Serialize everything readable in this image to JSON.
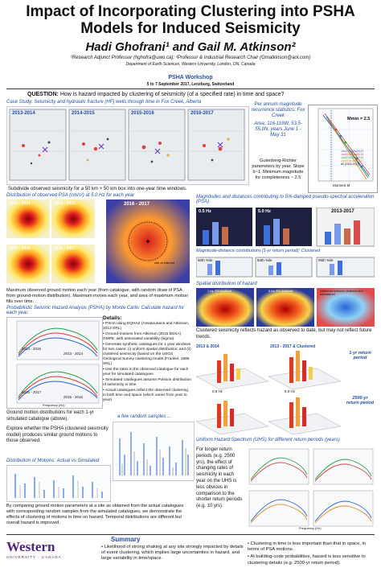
{
  "header": {
    "title_line1": "Impact of Incorporating Clustering into PSHA",
    "title_line2": "Models for Induced Seismicity",
    "authors": "Hadi Ghofrani¹ and Gail M. Atkinson²",
    "affiliations": "¹Research Adjunct Professor (hghofra@uwo.ca); ²Professor & Industrial Research Chair (Gmatkinson@aol.com)",
    "department": "Department of Earth Sciences, Western University, London, ON, Canada",
    "workshop": "PSHA Workshop",
    "workshop_dates": "5 to 7 September 2017, Lenzburg, Switzerland"
  },
  "question": {
    "label": "QUESTION:",
    "text": "How is hazard impacted by clustering of seismicity (of a specified rate) in time and space?"
  },
  "case_study": {
    "title": "Case Study: Seismicity and hydraulic fracture (HF) wells through time in Fox Creek, Alberta",
    "years": [
      "2013-2014",
      "2014-2015",
      "2015-2016",
      "2016-2017"
    ]
  },
  "recurrence": {
    "title": "Per annum magnitude recurrence statistics: Fox Creek",
    "area": "Area: 116-119W, 53.5-55.0N, years June 1 - May 31",
    "gr_text": "Gutenberg-Richter parameters by year. Slope b~1. Minimum magnitude for completeness ~ 2.5",
    "mmin_label": "Mmin = 2.5",
    "xlabel": "Moment M",
    "legend": [
      "Jun2013-May2014",
      "Jun2014-May2015",
      "Jun2015-May2016",
      "Jun2016-May2017",
      "All (2013-2017)"
    ]
  },
  "subdivide": {
    "text": "Subdivide observed seismicity for a 50 km × 50 km box into one-year time windows."
  },
  "psa_maps": {
    "title": "Distribution of observed PSA (cm/s²) at 5.0 Hz for each year",
    "labels": [
      "2013 - 2014",
      "2014 - 2015",
      "2015 - 2016",
      "2016 - 2017"
    ],
    "zoom_label": "2016 - 2017",
    "site_label": "site of interest"
  },
  "max_motion_text": "Maximum observed ground motion each year (from catalogue, with random draw of PSA from ground-motion distribution). Maximum moves each year, and area of maximum motion fills over time.",
  "magnitudes": {
    "title": "Magnitudes and distances contributing to 5%-damped pseudo-spectral acceleration (PSA)",
    "freq1": "0.5 Hz",
    "freq2": "5.0 Hz",
    "year": "2013-2017",
    "contrib_title": "Magnitude-distance contributions [1-yr return period]: Clustered",
    "percentiles": [
      "50th %ile",
      "84th %ile",
      "95th %ile"
    ]
  },
  "psha": {
    "title": "Probabilistic Seismic Hazard Analysis (PSHA) by Monte Carlo: Calculate hazard for each year.",
    "details_label": "Details:",
    "details": [
      "PSHA using EQHAZ (Assatourians and Atkinson, 2013 SRL)",
      "Ground-motions from Atkinson (2015 BSSA) GMPE, with associated variability (sigma)",
      "Generate synthetic catalogues for 1 year windows for two cases: (i) uniform spatial distribution; and (ii) clustered seismicity (based on the USGS Geological Survey clustering model (Frankel, 1995 SRL)",
      "Use the rates in the observed catalogue for each year for simulated catalogues",
      "Simulated catalogues assume Poisson distribution of seismicity in time",
      "Actual catalogues reflect the observed clustering in both time and space (which varies from year to year)"
    ],
    "chart_labels": [
      "2013 - 2014",
      "2014 - 2015",
      "2015 - 2016",
      "2016 - 2017"
    ],
    "xlabel": "Frequency (Hz)",
    "ylabel": "PSA (cm/s²)"
  },
  "spatial": {
    "title": "Spatial distribution of hazard",
    "panel_labels": [
      "1 Hz, 5% clustered",
      "5 Hz, 5% clustered",
      "Difference between clustered and unclustered"
    ]
  },
  "clustered_text": "Clustered seismicity reflects hazard as observed to date, but may not reflect future trends.",
  "bars": {
    "label_a": "2013 & 2014",
    "label_b": "2013 - 2017 & Clustered",
    "label_c": "1-yr return period",
    "label_d": "2500-yr return period",
    "freq_a": "0.5 Hz",
    "freq_b": "5.0 Hz"
  },
  "gm_dist": {
    "text": "Ground motion distributions for each 1-yr simulated catalogue (above).",
    "explore": "Explore whether the PSHA (clustered seismicity model) produces similar ground motions to those observed.",
    "random_samples": "a few random samples ...",
    "motions_title": "Distribution of Motions: Actual vs Simulated",
    "compare": "By comparing ground motion parameters at a site as obtained from the actual catalogues with corresponding random samples from the simulated catalogues, we demonstrate the effects of clustering of motions in time on hazard. Temporal distributions are different but overall hazard is improved."
  },
  "uhs": {
    "title": "Uniform Hazard Spectrum (UHS) for different return periods (years)",
    "text": "For longer return periods (e.g. 2500 yrs), the effect of changing rates of seismicity in each year on the UHS is less obvious in comparison to the shorter return periods (e.g. 10 yrs).",
    "xlabel": "Frequency (Hz)"
  },
  "summary": {
    "title": "Summary",
    "left": [
      "Likelihood of strong shaking at any site strongly impacted by details of event clustering, which implies large uncertainties in hazard, and large variability in time/space."
    ],
    "right": [
      "Clustering in time is less important than that in space, in terms of PSA motions.",
      "At building-code probabilities, hazard is less sensitive to clustering details (e.g. 2500-yr return period)."
    ]
  },
  "logo": {
    "name": "Western",
    "sub": "UNIVERSITY · CANADA"
  }
}
